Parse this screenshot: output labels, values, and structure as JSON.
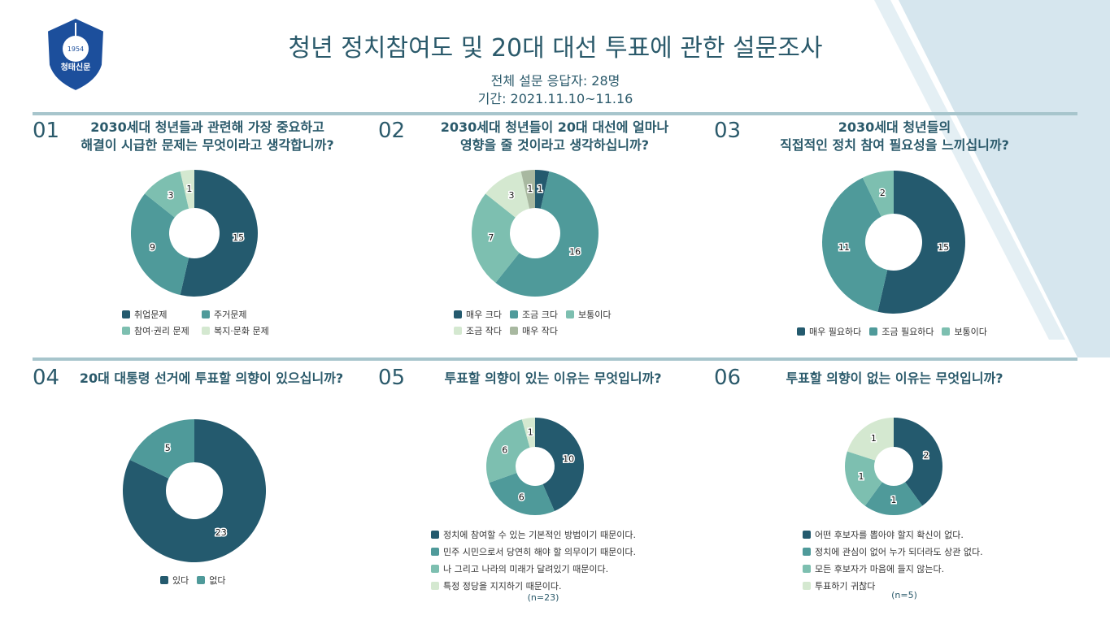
{
  "logo": {
    "year": "1954",
    "name": "청태신문"
  },
  "header": {
    "title": "청년 정치참여도 및 20대 대선 투표에 관한 설문조사",
    "respondents": "전체 설문 응답자: 28명",
    "period": "기간: 2021.11.10~11.16"
  },
  "chart_data": [
    {
      "type": "donut",
      "number": "01",
      "title": [
        "2030세대 청년들과 관련해 가장 중요하고",
        "해결이 시급한 문제는 무엇이라고 생각합니까?"
      ],
      "categories": [
        "취업문제",
        "주거문제",
        "참여·권리 문제",
        "복지·문화 문제"
      ],
      "values": [
        15,
        9,
        3,
        1
      ],
      "colors": [
        "#245a6e",
        "#4f9a9a",
        "#7dbfb0",
        "#d4e8d0"
      ]
    },
    {
      "type": "donut",
      "number": "02",
      "title": [
        "2030세대 청년들이 20대 대선에 얼마나",
        "영향을 줄 것이라고 생각하십니까?"
      ],
      "categories": [
        "매우 크다",
        "조금 크다",
        "보통이다",
        "조금 작다",
        "매우 작다"
      ],
      "values": [
        1,
        16,
        7,
        3,
        1
      ],
      "colors": [
        "#245a6e",
        "#4f9a9a",
        "#7dbfb0",
        "#d4e8d0",
        "#a8b8a0"
      ]
    },
    {
      "type": "donut",
      "number": "03",
      "title": [
        "2030세대 청년들의",
        "직접적인 정치 참여 필요성을 느끼십니까?"
      ],
      "categories": [
        "매우 필요하다",
        "조금 필요하다",
        "보통이다"
      ],
      "values": [
        15,
        11,
        2
      ],
      "colors": [
        "#245a6e",
        "#4f9a9a",
        "#7dbfb0"
      ]
    },
    {
      "type": "donut",
      "number": "04",
      "title": [
        "20대 대통령 선거에 투표할 의향이 있으십니까?"
      ],
      "categories": [
        "있다",
        "없다"
      ],
      "values": [
        23,
        5
      ],
      "colors": [
        "#245a6e",
        "#4f9a9a"
      ]
    },
    {
      "type": "donut",
      "number": "05",
      "title": [
        "투표할 의향이 있는 이유는 무엇입니까?"
      ],
      "categories": [
        "정치에 참여할 수 있는 기본적인 방법이기 때문이다.",
        "민주 시민으로서 당연히 해야 할 의무이기 때문이다.",
        "나 그리고 나라의 미래가 달려있기 때문이다.",
        "특정 정당을 지지하기 때문이다."
      ],
      "values": [
        10,
        6,
        6,
        1
      ],
      "colors": [
        "#245a6e",
        "#4f9a9a",
        "#7dbfb0",
        "#d4e8d0"
      ],
      "note": "(n=23)"
    },
    {
      "type": "donut",
      "number": "06",
      "title": [
        "투표할 의향이 없는 이유는 무엇입니까?"
      ],
      "categories": [
        "어떤 후보자를 뽑아야 할지 확신이 없다.",
        "정치에 관심이 없어 누가 되더라도 상관 없다.",
        "모든 후보자가 마음에 들지 않는다.",
        "투표하기 귀찮다"
      ],
      "values": [
        2,
        1,
        1,
        1
      ],
      "colors": [
        "#245a6e",
        "#4f9a9a",
        "#7dbfb0",
        "#d4e8d0"
      ],
      "note": "(n=5)"
    }
  ]
}
